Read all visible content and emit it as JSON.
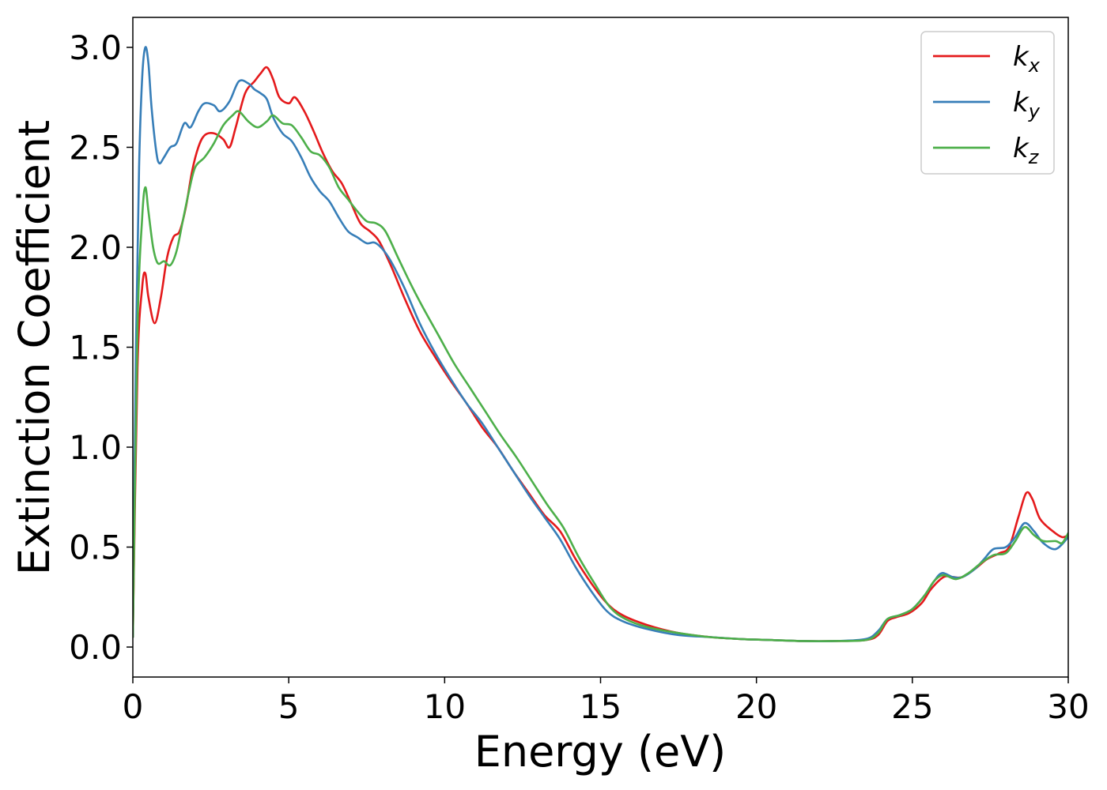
{
  "chart_data": {
    "type": "line",
    "title": "",
    "xlabel": "Energy (eV)",
    "ylabel": "Extinction Coefficient",
    "xlim": [
      0,
      30
    ],
    "ylim": [
      -0.15,
      3.15
    ],
    "xticks": [
      0,
      5,
      10,
      15,
      20,
      25,
      30
    ],
    "xtick_labels": [
      "0",
      "5",
      "10",
      "15",
      "20",
      "25",
      "30"
    ],
    "yticks": [
      0.0,
      0.5,
      1.0,
      1.5,
      2.0,
      2.5,
      3.0
    ],
    "ytick_labels": [
      "0.0",
      "0.5",
      "1.0",
      "1.5",
      "2.0",
      "2.5",
      "3.0"
    ],
    "grid": false,
    "legend_position": "top-right",
    "series": [
      {
        "name": "k_x",
        "label_main": "k",
        "label_sub": "x",
        "color": "#e41a1c",
        "points": [
          [
            0,
            0.05
          ],
          [
            0.15,
            1.4
          ],
          [
            0.3,
            1.8
          ],
          [
            0.4,
            1.87
          ],
          [
            0.5,
            1.75
          ],
          [
            0.7,
            1.62
          ],
          [
            0.9,
            1.75
          ],
          [
            1.1,
            1.95
          ],
          [
            1.3,
            2.05
          ],
          [
            1.5,
            2.08
          ],
          [
            1.7,
            2.2
          ],
          [
            1.9,
            2.38
          ],
          [
            2.1,
            2.5
          ],
          [
            2.3,
            2.56
          ],
          [
            2.6,
            2.57
          ],
          [
            2.9,
            2.54
          ],
          [
            3.1,
            2.5
          ],
          [
            3.3,
            2.6
          ],
          [
            3.6,
            2.77
          ],
          [
            3.9,
            2.83
          ],
          [
            4.1,
            2.87
          ],
          [
            4.3,
            2.9
          ],
          [
            4.5,
            2.84
          ],
          [
            4.7,
            2.75
          ],
          [
            5.0,
            2.72
          ],
          [
            5.2,
            2.75
          ],
          [
            5.5,
            2.68
          ],
          [
            5.8,
            2.58
          ],
          [
            6.1,
            2.47
          ],
          [
            6.4,
            2.38
          ],
          [
            6.7,
            2.32
          ],
          [
            7.0,
            2.22
          ],
          [
            7.3,
            2.12
          ],
          [
            7.6,
            2.08
          ],
          [
            7.9,
            2.03
          ],
          [
            8.3,
            1.9
          ],
          [
            8.7,
            1.75
          ],
          [
            9.2,
            1.58
          ],
          [
            9.7,
            1.45
          ],
          [
            10.2,
            1.33
          ],
          [
            10.7,
            1.22
          ],
          [
            11.2,
            1.1
          ],
          [
            11.7,
            1.0
          ],
          [
            12.2,
            0.88
          ],
          [
            12.7,
            0.77
          ],
          [
            13.2,
            0.66
          ],
          [
            13.7,
            0.58
          ],
          [
            14.2,
            0.44
          ],
          [
            14.7,
            0.32
          ],
          [
            15.2,
            0.22
          ],
          [
            15.7,
            0.16
          ],
          [
            16.5,
            0.11
          ],
          [
            17.5,
            0.07
          ],
          [
            18.5,
            0.05
          ],
          [
            19.5,
            0.04
          ],
          [
            20.5,
            0.035
          ],
          [
            21.5,
            0.03
          ],
          [
            22.5,
            0.03
          ],
          [
            23.5,
            0.035
          ],
          [
            23.9,
            0.06
          ],
          [
            24.2,
            0.13
          ],
          [
            24.5,
            0.15
          ],
          [
            24.9,
            0.17
          ],
          [
            25.3,
            0.22
          ],
          [
            25.6,
            0.29
          ],
          [
            26.0,
            0.35
          ],
          [
            26.3,
            0.35
          ],
          [
            26.6,
            0.35
          ],
          [
            27.0,
            0.39
          ],
          [
            27.4,
            0.44
          ],
          [
            27.8,
            0.47
          ],
          [
            28.1,
            0.5
          ],
          [
            28.4,
            0.65
          ],
          [
            28.65,
            0.77
          ],
          [
            28.85,
            0.74
          ],
          [
            29.1,
            0.64
          ],
          [
            29.5,
            0.58
          ],
          [
            29.8,
            0.55
          ],
          [
            30,
            0.56
          ]
        ]
      },
      {
        "name": "k_y",
        "label_main": "k",
        "label_sub": "y",
        "color": "#377eb8",
        "points": [
          [
            0,
            0.05
          ],
          [
            0.1,
            1.5
          ],
          [
            0.2,
            2.4
          ],
          [
            0.3,
            2.85
          ],
          [
            0.4,
            3.0
          ],
          [
            0.5,
            2.92
          ],
          [
            0.6,
            2.7
          ],
          [
            0.75,
            2.48
          ],
          [
            0.85,
            2.42
          ],
          [
            1.0,
            2.45
          ],
          [
            1.2,
            2.5
          ],
          [
            1.4,
            2.52
          ],
          [
            1.65,
            2.62
          ],
          [
            1.85,
            2.6
          ],
          [
            2.1,
            2.68
          ],
          [
            2.3,
            2.72
          ],
          [
            2.6,
            2.71
          ],
          [
            2.8,
            2.68
          ],
          [
            3.1,
            2.73
          ],
          [
            3.4,
            2.83
          ],
          [
            3.7,
            2.82
          ],
          [
            3.9,
            2.79
          ],
          [
            4.1,
            2.77
          ],
          [
            4.3,
            2.74
          ],
          [
            4.5,
            2.65
          ],
          [
            4.8,
            2.57
          ],
          [
            5.1,
            2.53
          ],
          [
            5.4,
            2.45
          ],
          [
            5.7,
            2.35
          ],
          [
            6.0,
            2.28
          ],
          [
            6.3,
            2.23
          ],
          [
            6.6,
            2.15
          ],
          [
            6.9,
            2.08
          ],
          [
            7.2,
            2.05
          ],
          [
            7.5,
            2.02
          ],
          [
            7.8,
            2.02
          ],
          [
            8.2,
            1.95
          ],
          [
            8.7,
            1.8
          ],
          [
            9.2,
            1.62
          ],
          [
            9.7,
            1.47
          ],
          [
            10.2,
            1.34
          ],
          [
            10.7,
            1.22
          ],
          [
            11.2,
            1.12
          ],
          [
            11.7,
            1.0
          ],
          [
            12.2,
            0.88
          ],
          [
            12.7,
            0.76
          ],
          [
            13.2,
            0.65
          ],
          [
            13.7,
            0.54
          ],
          [
            14.2,
            0.4
          ],
          [
            14.7,
            0.28
          ],
          [
            15.2,
            0.18
          ],
          [
            15.7,
            0.13
          ],
          [
            16.5,
            0.09
          ],
          [
            17.5,
            0.06
          ],
          [
            18.5,
            0.05
          ],
          [
            19.5,
            0.04
          ],
          [
            20.5,
            0.035
          ],
          [
            21.5,
            0.03
          ],
          [
            22.5,
            0.03
          ],
          [
            23.5,
            0.04
          ],
          [
            23.9,
            0.08
          ],
          [
            24.2,
            0.14
          ],
          [
            24.6,
            0.16
          ],
          [
            25.0,
            0.19
          ],
          [
            25.4,
            0.26
          ],
          [
            25.7,
            0.33
          ],
          [
            25.95,
            0.37
          ],
          [
            26.3,
            0.35
          ],
          [
            26.6,
            0.35
          ],
          [
            27.0,
            0.39
          ],
          [
            27.3,
            0.44
          ],
          [
            27.6,
            0.49
          ],
          [
            28.0,
            0.5
          ],
          [
            28.3,
            0.55
          ],
          [
            28.6,
            0.62
          ],
          [
            28.9,
            0.58
          ],
          [
            29.2,
            0.52
          ],
          [
            29.6,
            0.49
          ],
          [
            30,
            0.55
          ]
        ]
      },
      {
        "name": "k_z",
        "label_main": "k",
        "label_sub": "z",
        "color": "#4daf4a",
        "points": [
          [
            0,
            0.05
          ],
          [
            0.15,
            1.6
          ],
          [
            0.3,
            2.15
          ],
          [
            0.4,
            2.3
          ],
          [
            0.5,
            2.18
          ],
          [
            0.65,
            2.0
          ],
          [
            0.8,
            1.92
          ],
          [
            1.0,
            1.93
          ],
          [
            1.2,
            1.91
          ],
          [
            1.4,
            1.98
          ],
          [
            1.6,
            2.13
          ],
          [
            1.8,
            2.28
          ],
          [
            2.0,
            2.4
          ],
          [
            2.3,
            2.45
          ],
          [
            2.6,
            2.52
          ],
          [
            2.9,
            2.61
          ],
          [
            3.2,
            2.66
          ],
          [
            3.4,
            2.68
          ],
          [
            3.7,
            2.63
          ],
          [
            4.0,
            2.6
          ],
          [
            4.3,
            2.63
          ],
          [
            4.5,
            2.66
          ],
          [
            4.8,
            2.62
          ],
          [
            5.1,
            2.61
          ],
          [
            5.4,
            2.55
          ],
          [
            5.7,
            2.48
          ],
          [
            6.0,
            2.46
          ],
          [
            6.3,
            2.4
          ],
          [
            6.6,
            2.3
          ],
          [
            6.9,
            2.24
          ],
          [
            7.2,
            2.18
          ],
          [
            7.5,
            2.13
          ],
          [
            7.8,
            2.12
          ],
          [
            8.1,
            2.08
          ],
          [
            8.5,
            1.95
          ],
          [
            8.9,
            1.82
          ],
          [
            9.3,
            1.7
          ],
          [
            9.8,
            1.56
          ],
          [
            10.3,
            1.42
          ],
          [
            10.8,
            1.3
          ],
          [
            11.3,
            1.18
          ],
          [
            11.8,
            1.06
          ],
          [
            12.3,
            0.95
          ],
          [
            12.8,
            0.83
          ],
          [
            13.3,
            0.71
          ],
          [
            13.8,
            0.6
          ],
          [
            14.3,
            0.45
          ],
          [
            14.8,
            0.32
          ],
          [
            15.3,
            0.2
          ],
          [
            15.8,
            0.14
          ],
          [
            16.5,
            0.1
          ],
          [
            17.5,
            0.07
          ],
          [
            18.5,
            0.05
          ],
          [
            19.5,
            0.04
          ],
          [
            20.5,
            0.035
          ],
          [
            21.5,
            0.03
          ],
          [
            22.5,
            0.03
          ],
          [
            23.5,
            0.035
          ],
          [
            23.9,
            0.07
          ],
          [
            24.2,
            0.14
          ],
          [
            24.6,
            0.16
          ],
          [
            25.0,
            0.19
          ],
          [
            25.4,
            0.26
          ],
          [
            25.7,
            0.33
          ],
          [
            26.0,
            0.36
          ],
          [
            26.4,
            0.34
          ],
          [
            26.8,
            0.37
          ],
          [
            27.2,
            0.42
          ],
          [
            27.6,
            0.46
          ],
          [
            28.0,
            0.47
          ],
          [
            28.3,
            0.53
          ],
          [
            28.6,
            0.6
          ],
          [
            28.9,
            0.56
          ],
          [
            29.2,
            0.53
          ],
          [
            29.6,
            0.53
          ],
          [
            29.8,
            0.52
          ],
          [
            30,
            0.57
          ]
        ]
      }
    ]
  }
}
